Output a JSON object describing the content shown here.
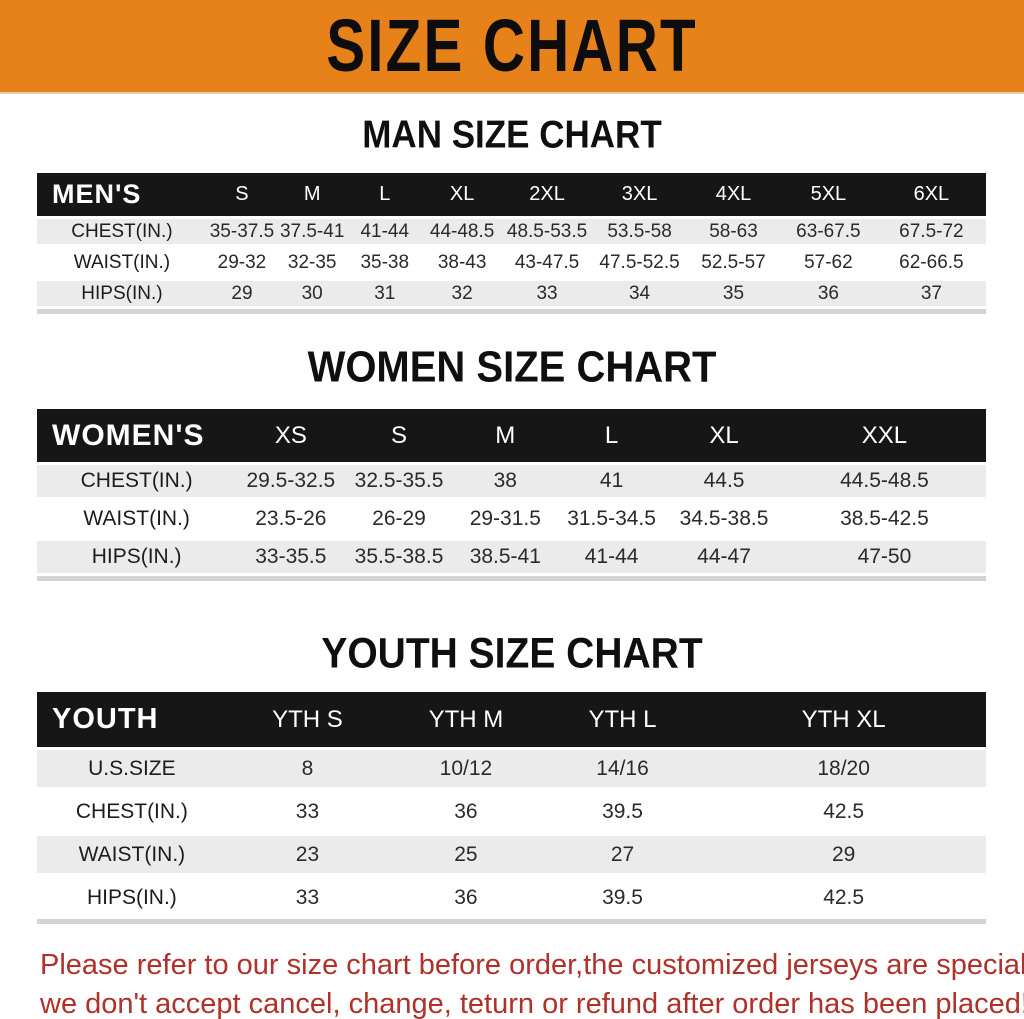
{
  "banner": {
    "title": "SIZE CHART",
    "bg_color": "#e7811a",
    "text_color": "#0d0d0d"
  },
  "colors": {
    "table_header_bg": "#161616",
    "table_stripe": "#ebebeb",
    "footer_text": "#b0302a"
  },
  "sections": [
    {
      "heading": "MAN SIZE CHART",
      "table": {
        "corner_label": "MEN'S",
        "columns": [
          "S",
          "M",
          "L",
          "XL",
          "2XL",
          "3XL",
          "4XL",
          "5XL",
          "6XL"
        ],
        "rows": [
          {
            "label": "CHEST(IN.)",
            "values": [
              "35-37.5",
              "37.5-41",
              "41-44",
              "44-48.5",
              "48.5-53.5",
              "53.5-58",
              "58-63",
              "63-67.5",
              "67.5-72"
            ]
          },
          {
            "label": "WAIST(IN.)",
            "values": [
              "29-32",
              "32-35",
              "35-38",
              "38-43",
              "43-47.5",
              "47.5-52.5",
              "52.5-57",
              "57-62",
              "62-66.5"
            ]
          },
          {
            "label": "HIPS(IN.)",
            "values": [
              "29",
              "30",
              "31",
              "32",
              "33",
              "34",
              "35",
              "36",
              "37"
            ]
          }
        ]
      }
    },
    {
      "heading": "WOMEN SIZE CHART",
      "table": {
        "corner_label": "WOMEN'S",
        "columns": [
          "XS",
          "S",
          "M",
          "L",
          "XL",
          "XXL"
        ],
        "rows": [
          {
            "label": "CHEST(IN.)",
            "values": [
              "29.5-32.5",
              "32.5-35.5",
              "38",
              "41",
              "44.5",
              "44.5-48.5"
            ]
          },
          {
            "label": "WAIST(IN.)",
            "values": [
              "23.5-26",
              "26-29",
              "29-31.5",
              "31.5-34.5",
              "34.5-38.5",
              "38.5-42.5"
            ]
          },
          {
            "label": "HIPS(IN.)",
            "values": [
              "33-35.5",
              "35.5-38.5",
              "38.5-41",
              "41-44",
              "44-47",
              "47-50"
            ]
          }
        ]
      }
    },
    {
      "heading": "YOUTH SIZE CHART",
      "table": {
        "corner_label": "YOUTH",
        "columns": [
          "YTH S",
          "YTH M",
          "YTH L",
          "YTH XL"
        ],
        "rows": [
          {
            "label": "U.S.SIZE",
            "values": [
              "8",
              "10/12",
              "14/16",
              "18/20"
            ]
          },
          {
            "label": "CHEST(IN.)",
            "values": [
              "33",
              "36",
              "39.5",
              "42.5"
            ]
          },
          {
            "label": "WAIST(IN.)",
            "values": [
              "23",
              "25",
              "27",
              "29"
            ]
          },
          {
            "label": "HIPS(IN.)",
            "values": [
              "33",
              "36",
              "39.5",
              "42.5"
            ]
          }
        ]
      }
    }
  ],
  "footer": {
    "line1": "Please refer to our size chart before order,the customized jerseys are special products,",
    "line2": "we don't accept cancel, change, teturn or refund after order has been placed!"
  }
}
